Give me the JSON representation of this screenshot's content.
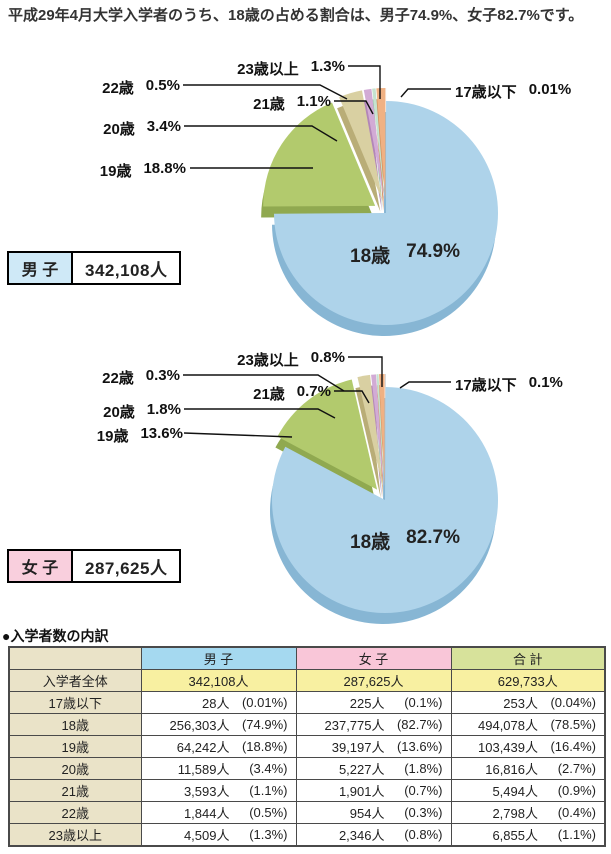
{
  "title": "平成29年4月大学入学者のうち、18歳の占める割合は、男子74.9%、女子82.7%です。",
  "charts": [
    {
      "box_label": "男 子",
      "box_value": "342,108人",
      "inside": {
        "label": "18歳",
        "pct": "74.9%"
      },
      "callouts": [
        {
          "label": "23歳以上",
          "pct": "1.3%"
        },
        {
          "label": "22歳",
          "pct": "0.5%"
        },
        {
          "label": "21歳",
          "pct": "1.1%"
        },
        {
          "label": "17歳以下",
          "pct": "0.01%"
        },
        {
          "label": "20歳",
          "pct": "3.4%"
        },
        {
          "label": "19歳",
          "pct": "18.8%"
        }
      ]
    },
    {
      "box_label": "女 子",
      "box_value": "287,625人",
      "inside": {
        "label": "18歳",
        "pct": "82.7%"
      },
      "callouts": [
        {
          "label": "23歳以上",
          "pct": "0.8%"
        },
        {
          "label": "22歳",
          "pct": "0.3%"
        },
        {
          "label": "21歳",
          "pct": "0.7%"
        },
        {
          "label": "17歳以下",
          "pct": "0.1%"
        },
        {
          "label": "20歳",
          "pct": "1.8%"
        },
        {
          "label": "19歳",
          "pct": "13.6%"
        }
      ]
    }
  ],
  "chart_data": [
    {
      "type": "pie",
      "title": "男子 342,108人",
      "unit": "%",
      "labels": [
        "17歳以下",
        "18歳",
        "19歳",
        "20歳",
        "21歳",
        "22歳",
        "23歳以上"
      ],
      "values": [
        0.01,
        74.9,
        18.8,
        3.4,
        1.1,
        0.5,
        1.3
      ],
      "start_angle": "top",
      "direction": "clockwise",
      "style": "3d-exploded"
    },
    {
      "type": "pie",
      "title": "女子 287,625人",
      "unit": "%",
      "labels": [
        "17歳以下",
        "18歳",
        "19歳",
        "20歳",
        "21歳",
        "22歳",
        "23歳以上"
      ],
      "values": [
        0.1,
        82.7,
        13.6,
        1.8,
        0.7,
        0.3,
        0.8
      ],
      "start_angle": "top",
      "direction": "clockwise",
      "style": "3d-exploded"
    }
  ],
  "table": {
    "section_title": "●入学者数の内訳",
    "columns": [
      "男 子",
      "女 子",
      "合 計"
    ],
    "total_row": {
      "label": "入学者全体",
      "cells": [
        "342,108人",
        "287,625人",
        "629,733人"
      ]
    },
    "rows": [
      {
        "label": "17歳以下",
        "cells": [
          [
            "28人",
            "(0.01%)"
          ],
          [
            "225人",
            "(0.1%)"
          ],
          [
            "253人",
            "(0.04%)"
          ]
        ]
      },
      {
        "label": "18歳",
        "cells": [
          [
            "256,303人",
            "(74.9%)"
          ],
          [
            "237,775人",
            "(82.7%)"
          ],
          [
            "494,078人",
            "(78.5%)"
          ]
        ]
      },
      {
        "label": "19歳",
        "cells": [
          [
            "64,242人",
            "(18.8%)"
          ],
          [
            "39,197人",
            "(13.6%)"
          ],
          [
            "103,439人",
            "(16.4%)"
          ]
        ]
      },
      {
        "label": "20歳",
        "cells": [
          [
            "11,589人",
            "(3.4%)"
          ],
          [
            "5,227人",
            "(1.8%)"
          ],
          [
            "16,816人",
            "(2.7%)"
          ]
        ]
      },
      {
        "label": "21歳",
        "cells": [
          [
            "3,593人",
            "(1.1%)"
          ],
          [
            "1,901人",
            "(0.7%)"
          ],
          [
            "5,494人",
            "(0.9%)"
          ]
        ]
      },
      {
        "label": "22歳",
        "cells": [
          [
            "1,844人",
            "(0.5%)"
          ],
          [
            "954人",
            "(0.3%)"
          ],
          [
            "2,798人",
            "(0.4%)"
          ]
        ]
      },
      {
        "label": "23歳以上",
        "cells": [
          [
            "4,509人",
            "(1.3%)"
          ],
          [
            "2,346人",
            "(0.8%)"
          ],
          [
            "6,855人",
            "(1.1%)"
          ]
        ]
      }
    ]
  },
  "colors": {
    "header_boys": "#a5d9f0",
    "header_girls": "#f9c6d8",
    "header_total": "#d7e29b",
    "row_label_bg": "#eae3c8",
    "total_row_bg": "#f8f0a1",
    "box_boys_bg": "#cfe9f7",
    "box_girls_bg": "#f9cfdd",
    "border": "#4a4a4a",
    "pie_segments": [
      "#c8c8c8",
      "#aed3ea",
      "#b2ca6d",
      "#d9d0a2",
      "#d2abd5",
      "#c5e3cf",
      "#f0b183"
    ],
    "pie_segments_dark": [
      "#9a9a9a",
      "#87b6d4",
      "#90a950",
      "#b9ad77",
      "#b286b8",
      "#9cc5ac",
      "#d28f5a"
    ]
  }
}
